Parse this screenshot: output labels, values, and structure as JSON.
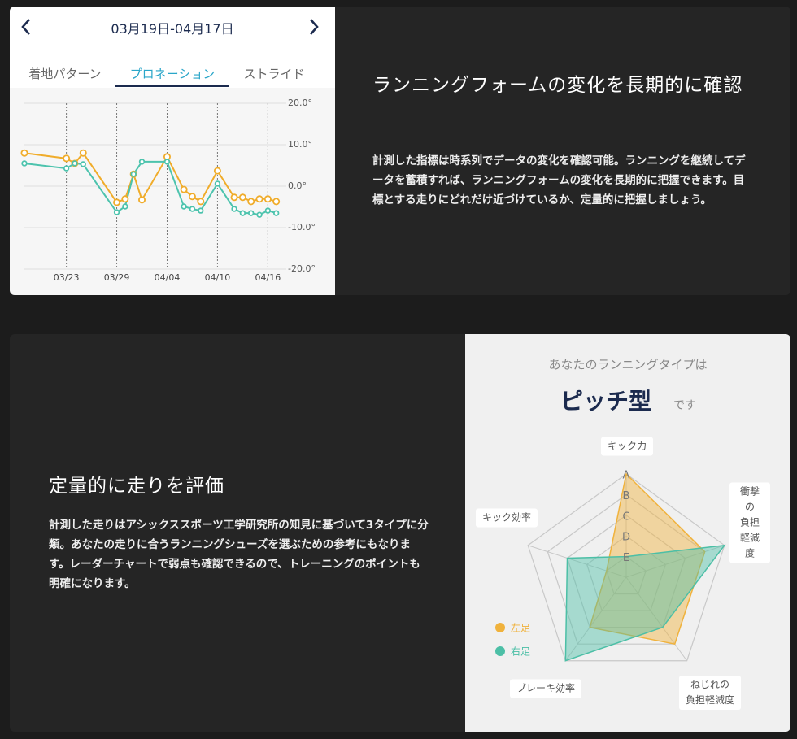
{
  "section1": {
    "date_range": "03月19日-04月17日",
    "tabs": [
      "着地パターン",
      "プロネーション",
      "ストライド"
    ],
    "heading": "ランニングフォームの変化を長期的に確認",
    "body": "計測した指標は時系列でデータの変化を確認可能。ランニングを継続してデータを蓄積すれば、ランニングフォームの変化を長期的に把握できます。目標とする走りにどれだけ近づけているか、定量的に把握しましょう。"
  },
  "section2": {
    "heading": "定量的に走りを評価",
    "body": "計測した走りはアシックススポーツ工学研究所の知見に基づいて3タイプに分類。あなたの走りに合うランニングシューズを選ぶための参考にもなります。レーダーチャートで弱点も確認できるので、トレーニングのポイントも明確になります。"
  },
  "chart_data": [
    {
      "type": "line",
      "x": [
        "03/18",
        "03/23",
        "03/24",
        "03/25",
        "03/29",
        "03/30",
        "03/31",
        "04/01",
        "04/04",
        "04/06",
        "04/07",
        "04/08",
        "04/10",
        "04/12",
        "04/13",
        "04/14",
        "04/15",
        "04/16",
        "04/17"
      ],
      "series": [
        {
          "color": "#f0ac2a",
          "values": [
            8.0,
            6.7,
            5.5,
            8.0,
            -3.9,
            -3.1,
            2.9,
            -3.3,
            7.1,
            -0.8,
            -2.5,
            -3.7,
            3.7,
            -2.7,
            -2.7,
            -3.7,
            -3.1,
            -3.1,
            -3.7
          ]
        },
        {
          "color": "#4cc3ad",
          "values": [
            5.5,
            4.3,
            5.5,
            5.3,
            -6.3,
            -4.9,
            2.9,
            5.9,
            5.9,
            -4.9,
            -5.5,
            -5.9,
            0.6,
            -5.5,
            -6.5,
            -6.5,
            -6.9,
            -5.9,
            -6.5
          ]
        }
      ],
      "xlim": [
        "03/18",
        "04/18"
      ],
      "xticks": [
        "03/23",
        "03/29",
        "04/04",
        "04/10",
        "04/16"
      ],
      "ylim": [
        -20,
        20
      ],
      "yticks": [
        {
          "value": 20,
          "label": "20.0°"
        },
        {
          "value": 10,
          "label": "10.0°"
        },
        {
          "value": 0,
          "label": "0.0°"
        },
        {
          "value": -10,
          "label": "-10.0°"
        },
        {
          "value": -20,
          "label": "-20.0°"
        }
      ],
      "grid": true
    },
    {
      "type": "radar",
      "title": "あなたのランニングタイプは",
      "result": "ピッチ型",
      "result_suffix": "です",
      "categories": [
        "キック力",
        "衝撃の\n負担軽減度",
        "ねじれの\n負担軽減度",
        "ブレーキ効率",
        "キック効率"
      ],
      "series": [
        {
          "name": "左足",
          "color": "#f0b23c",
          "values": [
            5,
            4,
            4,
            3,
            1
          ]
        },
        {
          "name": "右足",
          "color": "#4cbfa6",
          "values": [
            1,
            5,
            3,
            5,
            3
          ]
        }
      ],
      "rlim": [
        0,
        5
      ],
      "rticks": [
        {
          "value": 5,
          "label": "A"
        },
        {
          "value": 4,
          "label": "B"
        },
        {
          "value": 3,
          "label": "C"
        },
        {
          "value": 2,
          "label": "D"
        },
        {
          "value": 1,
          "label": "E"
        }
      ]
    }
  ]
}
